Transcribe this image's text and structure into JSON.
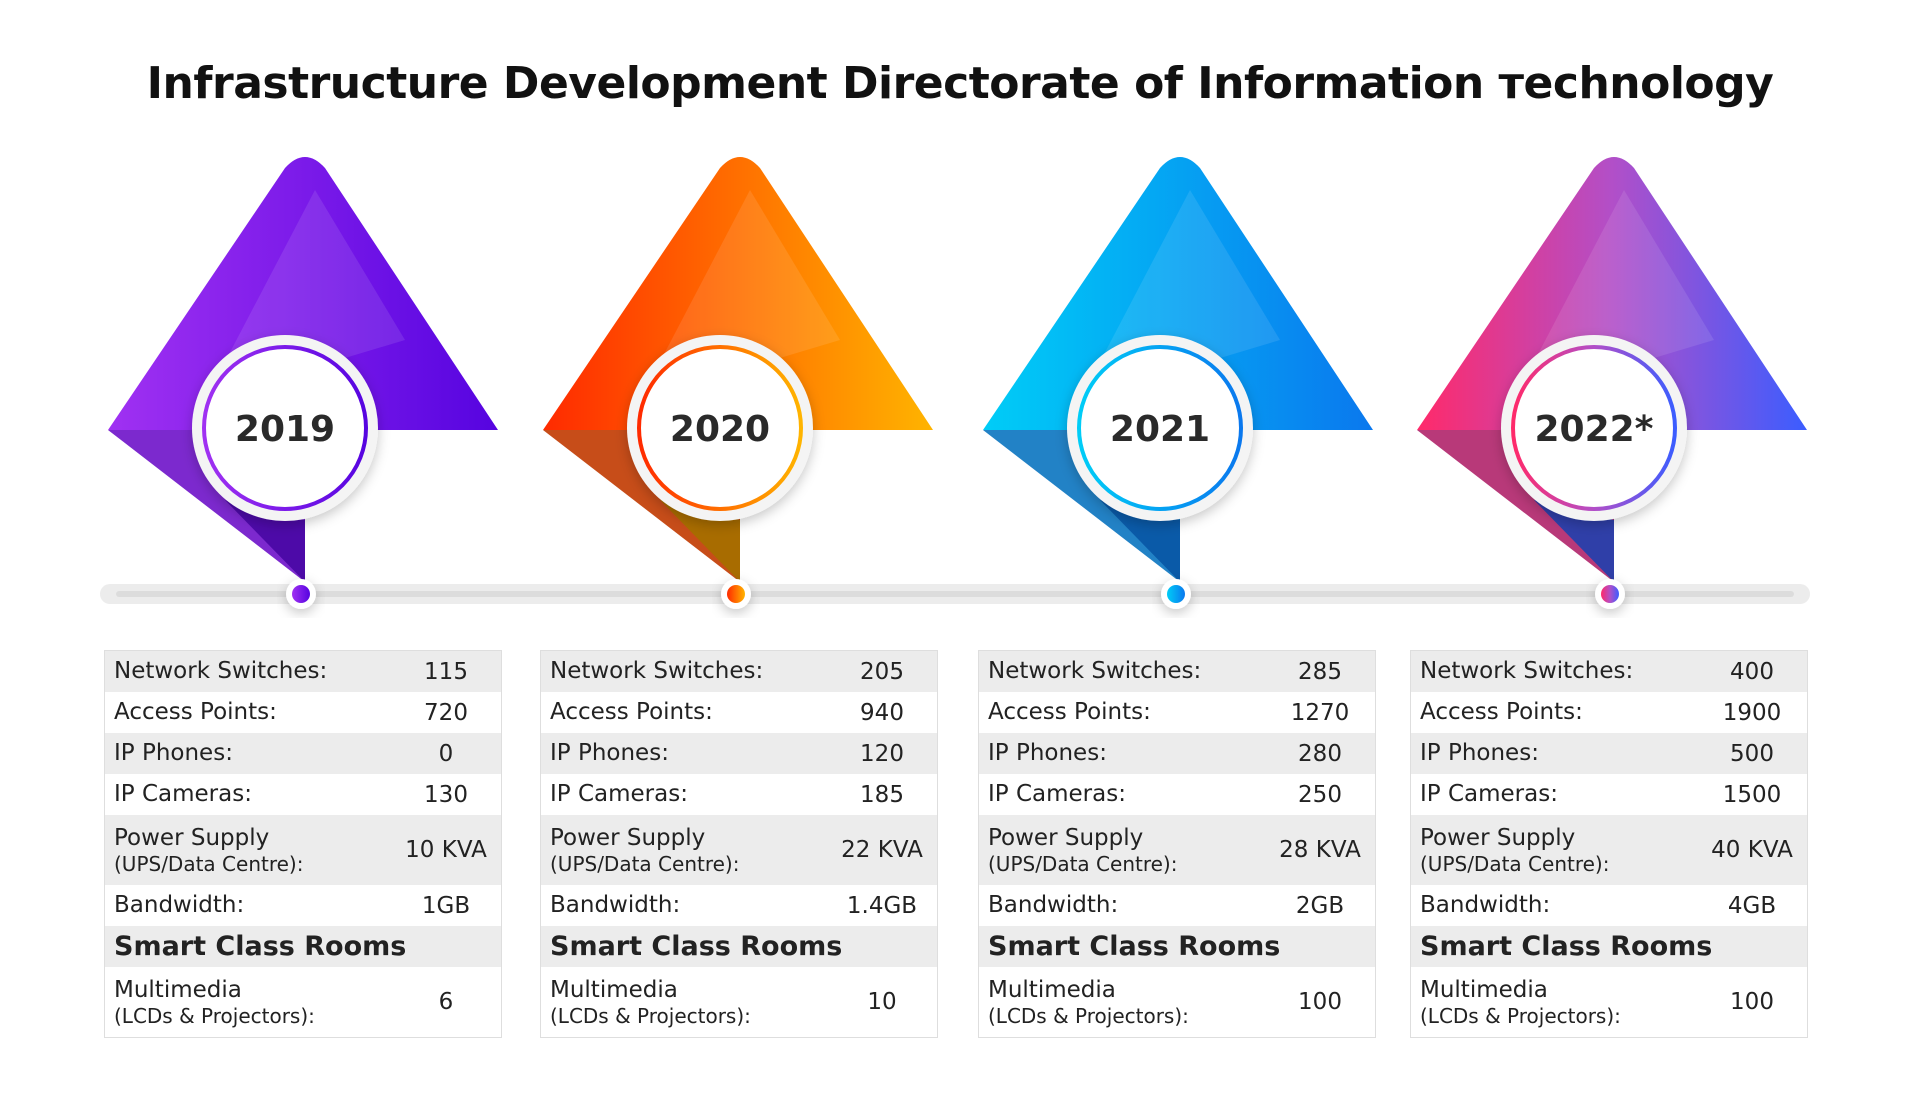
{
  "title": "Infrastructure Development Directorate of Information тechnology",
  "colors": {
    "col2019": [
      "#9a2ff0",
      "#5b05e0"
    ],
    "col2020": [
      "#ff3c00",
      "#ffb000"
    ],
    "col2021": [
      "#00c4f5",
      "#0a7ef0"
    ],
    "col2022": [
      "#ff2e73",
      "#3d5cff"
    ]
  },
  "labels": {
    "network_switches": "Network Switches:",
    "access_points": "Access Points:",
    "ip_phones": "IP Phones:",
    "ip_cameras": "IP Cameras:",
    "power_supply": "Power Supply",
    "power_supply_sub": "(UPS/Data Centre):",
    "bandwidth": "Bandwidth:",
    "smart_class_rooms": "Smart Class Rooms",
    "multimedia": "Multimedia",
    "multimedia_sub": "(LCDs & Projectors):"
  },
  "years": [
    {
      "year": "2019",
      "network_switches": "115",
      "access_points": "720",
      "ip_phones": "0",
      "ip_cameras": "130",
      "power_supply": "10 KVA",
      "bandwidth": "1GB",
      "multimedia": "6"
    },
    {
      "year": "2020",
      "network_switches": "205",
      "access_points": "940",
      "ip_phones": "120",
      "ip_cameras": "185",
      "power_supply": "22 KVA",
      "bandwidth": "1.4GB",
      "multimedia": "10"
    },
    {
      "year": "2021",
      "network_switches": "285",
      "access_points": "1270",
      "ip_phones": "280",
      "ip_cameras": "250",
      "power_supply": "28 KVA",
      "bandwidth": "2GB",
      "multimedia": "100"
    },
    {
      "year": "2022*",
      "network_switches": "400",
      "access_points": "1900",
      "ip_phones": "500",
      "ip_cameras": "1500",
      "power_supply": "40 KVA",
      "bandwidth": "4GB",
      "multimedia": "100"
    }
  ]
}
